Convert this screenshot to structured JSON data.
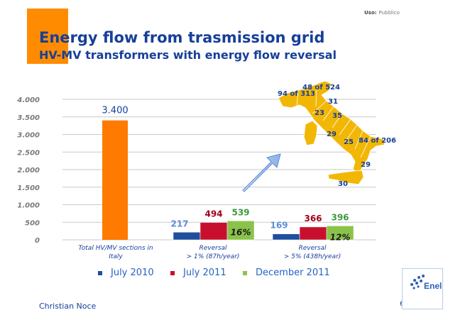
{
  "header": {
    "uso_label": "Uso:",
    "uso_value": "Pubblico",
    "title": "Energy flow from trasmission grid",
    "subtitle": "HV-MV transformers with energy flow reversal"
  },
  "chart_data": {
    "type": "bar",
    "categories": [
      "Total HV/MV sections in Italy",
      "Reversal > 1% (87h/year)",
      "Reversal > 5% (438h/year)"
    ],
    "category_lines": [
      [
        "Total HV/MV sections in",
        "Italy"
      ],
      [
        "Reversal",
        "> 1% (87h/year)"
      ],
      [
        "Reversal",
        "> 5% (438h/year)"
      ]
    ],
    "series": [
      {
        "name": "July 2010",
        "color": "#1f4e9e",
        "values": [
          null,
          217,
          169
        ]
      },
      {
        "name": "July 2011",
        "color": "#c8102e",
        "values": [
          null,
          494,
          366
        ]
      },
      {
        "name": "December 2011",
        "color": "#8bc34a",
        "values": [
          null,
          539,
          396
        ]
      }
    ],
    "total": {
      "value": 3400,
      "label": "3.400",
      "color": "#ff7a00"
    },
    "value_labels": [
      {
        "series": 0,
        "category": 1,
        "text": "217",
        "color": "#5b8ed6"
      },
      {
        "series": 1,
        "category": 1,
        "text": "494",
        "color": "#a3001b"
      },
      {
        "series": 2,
        "category": 1,
        "text": "539",
        "color": "#3a9a3a"
      },
      {
        "series": 0,
        "category": 2,
        "text": "169",
        "color": "#5b8ed6"
      },
      {
        "series": 1,
        "category": 2,
        "text": "366",
        "color": "#a3001b"
      },
      {
        "series": 2,
        "category": 2,
        "text": "396",
        "color": "#3a9a3a"
      }
    ],
    "percent_labels": [
      {
        "category": 1,
        "text": "16%"
      },
      {
        "category": 2,
        "text": "12%"
      }
    ],
    "ylim": [
      0,
      4000
    ],
    "yticks": [
      0,
      500,
      1000,
      1500,
      2000,
      2500,
      3000,
      3500,
      4000
    ],
    "ytick_labels": [
      "0",
      "500",
      "1.000",
      "1.500",
      "2.000",
      "2.500",
      "3.000",
      "3.500",
      "4.000"
    ],
    "grid": true,
    "legend_position": "bottom"
  },
  "map": {
    "labels": [
      {
        "id": "north-east",
        "text": "48 of 524"
      },
      {
        "id": "north-west",
        "text": "94 of 313"
      },
      {
        "id": "centre-north",
        "text": "31"
      },
      {
        "id": "centre-west",
        "text": "23"
      },
      {
        "id": "centre-east",
        "text": "35"
      },
      {
        "id": "sardinia",
        "text": "29"
      },
      {
        "id": "south-west",
        "text": "25"
      },
      {
        "id": "south-east",
        "text": "84 of 206"
      },
      {
        "id": "calabria",
        "text": "29"
      },
      {
        "id": "sicily",
        "text": "30"
      }
    ]
  },
  "footer": {
    "author": "Christian Noce",
    "page_number": "6",
    "logo_text": "Enel"
  }
}
